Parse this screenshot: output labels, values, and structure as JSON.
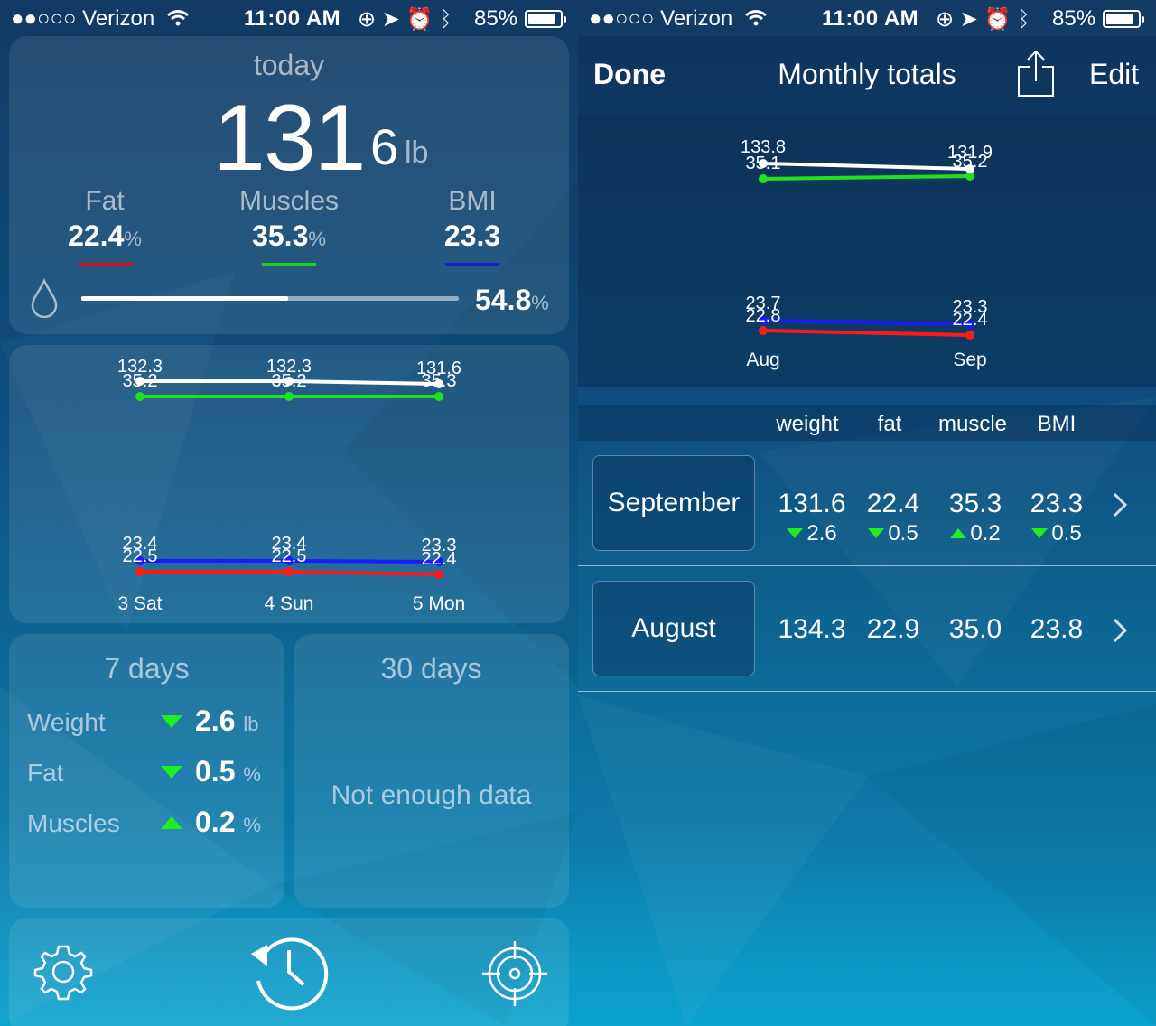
{
  "status_bar": {
    "carrier": "●●○○○ Verizon",
    "time": "11:00 AM",
    "battery": "85%",
    "battery_level": 0.85,
    "icons": [
      "wifi-icon",
      "rotation-lock-icon",
      "location-icon",
      "alarm-icon",
      "bluetooth-icon"
    ]
  },
  "today": {
    "label": "today",
    "weight_int": "131",
    "weight_dec": "6",
    "weight_unit": "lb",
    "metrics": [
      {
        "label": "Fat",
        "value": "22.4",
        "unit": "%",
        "color": "#d4141c"
      },
      {
        "label": "Muscles",
        "value": "35.3",
        "unit": "%",
        "color": "#16d41c"
      },
      {
        "label": "BMI",
        "value": "23.3",
        "unit": "",
        "color": "#1c1cd4"
      }
    ],
    "water": {
      "value": "54.8",
      "unit": "%",
      "level": 0.548
    }
  },
  "week_chart": {
    "dates": [
      "3 Sat",
      "4 Sun",
      "5 Mon"
    ],
    "upper_labels": {
      "weight": [
        "132.3",
        "132.3",
        "131.6"
      ],
      "muscle": [
        "35.2",
        "35.2",
        "35.3"
      ]
    },
    "lower_labels": {
      "bmi": [
        "23.4",
        "23.4",
        "23.3"
      ],
      "fat": [
        "22.5",
        "22.5",
        "22.4"
      ]
    }
  },
  "seven_days": {
    "title": "7 days",
    "rows": [
      {
        "label": "Weight",
        "direction": "down",
        "value": "2.6",
        "unit": "lb"
      },
      {
        "label": "Fat",
        "direction": "down",
        "value": "0.5",
        "unit": "%"
      },
      {
        "label": "Muscles",
        "direction": "up",
        "value": "0.2",
        "unit": "%"
      }
    ]
  },
  "thirty_days": {
    "title": "30 days",
    "message": "Not enough data"
  },
  "toolbar": {
    "icons": [
      "gear-icon",
      "history-icon",
      "target-icon"
    ]
  },
  "monthly": {
    "nav": {
      "done": "Done",
      "title": "Monthly totals",
      "edit": "Edit"
    },
    "chart": {
      "months": [
        "Aug",
        "Sep"
      ],
      "upper_labels": {
        "weight": [
          "133.8",
          "131.9"
        ],
        "muscle": [
          "35.1",
          "35.2"
        ]
      },
      "lower_labels": {
        "bmi": [
          "23.7",
          "23.3"
        ],
        "fat": [
          "22.8",
          "22.4"
        ]
      }
    },
    "columns": [
      "weight",
      "fat",
      "muscle",
      "BMI"
    ],
    "rows": [
      {
        "month": "September",
        "values": [
          "131.6",
          "22.4",
          "35.3",
          "23.3"
        ],
        "deltas": [
          {
            "direction": "down",
            "value": "2.6"
          },
          {
            "direction": "down",
            "value": "0.5"
          },
          {
            "direction": "up",
            "value": "0.2"
          },
          {
            "direction": "down",
            "value": "0.5"
          }
        ]
      },
      {
        "month": "August",
        "values": [
          "134.3",
          "22.9",
          "35.0",
          "23.8"
        ],
        "deltas": []
      }
    ]
  }
}
